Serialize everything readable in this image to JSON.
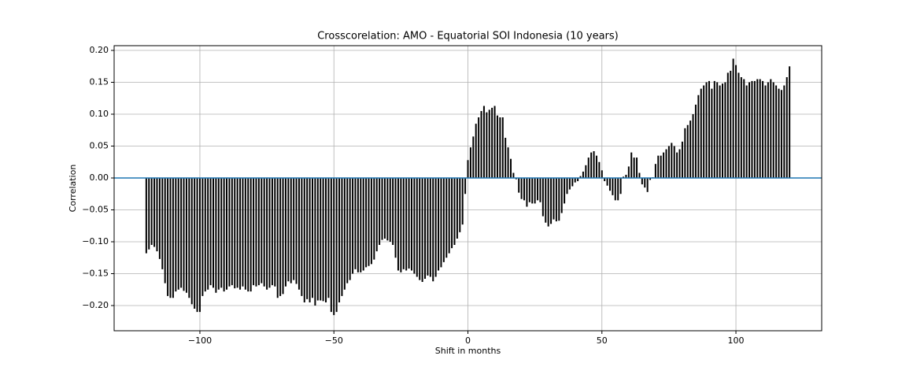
{
  "chart_data": {
    "type": "xcorr",
    "title": "Crosscorelation: AMO - Equatorial SOI Indonesia (10 years)",
    "x_label": "Shift in months",
    "y_label": "Correlation",
    "color": "#000000",
    "grid": true,
    "xlim": [
      -132,
      132
    ],
    "ylim": [
      -0.2395,
      0.2074
    ],
    "xticks": [
      {
        "value": -100,
        "label": "−100"
      },
      {
        "value": -50,
        "label": "−50"
      },
      0,
      50,
      100
    ],
    "yticks": [
      {
        "value": -0.2,
        "label": "−0.20"
      },
      {
        "value": -0.15,
        "label": "−0.15"
      },
      {
        "value": -0.1,
        "label": "−0.10"
      },
      {
        "value": -0.05,
        "label": "−0.05"
      },
      {
        "value": 0,
        "label": "0.00"
      },
      {
        "value": 0.05,
        "label": "0.05"
      },
      {
        "value": 0.1,
        "label": "0.10"
      },
      {
        "value": 0.15,
        "label": "0.15"
      },
      {
        "value": 0.2,
        "label": "0.20"
      }
    ],
    "x": [
      -120,
      -119,
      -118,
      -117,
      -116,
      -115,
      -114,
      -113,
      -112,
      -111,
      -110,
      -109,
      -108,
      -107,
      -106,
      -105,
      -104,
      -103,
      -102,
      -101,
      -100,
      -99,
      -98,
      -97,
      -96,
      -95,
      -94,
      -93,
      -92,
      -91,
      -90,
      -89,
      -88,
      -87,
      -86,
      -85,
      -84,
      -83,
      -82,
      -81,
      -80,
      -79,
      -78,
      -77,
      -76,
      -75,
      -74,
      -73,
      -72,
      -71,
      -70,
      -69,
      -68,
      -67,
      -66,
      -65,
      -64,
      -63,
      -62,
      -61,
      -60,
      -59,
      -58,
      -57,
      -56,
      -55,
      -54,
      -53,
      -52,
      -51,
      -50,
      -49,
      -48,
      -47,
      -46,
      -45,
      -44,
      -43,
      -42,
      -41,
      -40,
      -39,
      -38,
      -37,
      -36,
      -35,
      -34,
      -33,
      -32,
      -31,
      -30,
      -29,
      -28,
      -27,
      -26,
      -25,
      -24,
      -23,
      -22,
      -21,
      -20,
      -19,
      -18,
      -17,
      -16,
      -15,
      -14,
      -13,
      -12,
      -11,
      -10,
      -9,
      -8,
      -7,
      -6,
      -5,
      -4,
      -3,
      -2,
      -1,
      0,
      1,
      2,
      3,
      4,
      5,
      6,
      7,
      8,
      9,
      10,
      11,
      12,
      13,
      14,
      15,
      16,
      17,
      18,
      19,
      20,
      21,
      22,
      23,
      24,
      25,
      26,
      27,
      28,
      29,
      30,
      31,
      32,
      33,
      34,
      35,
      36,
      37,
      38,
      39,
      40,
      41,
      42,
      43,
      44,
      45,
      46,
      47,
      48,
      49,
      50,
      51,
      52,
      53,
      54,
      55,
      56,
      57,
      58,
      59,
      60,
      61,
      62,
      63,
      64,
      65,
      66,
      67,
      68,
      69,
      70,
      71,
      72,
      73,
      74,
      75,
      76,
      77,
      78,
      79,
      80,
      81,
      82,
      83,
      84,
      85,
      86,
      87,
      88,
      89,
      90,
      91,
      92,
      93,
      94,
      95,
      96,
      97,
      98,
      99,
      100,
      101,
      102,
      103,
      104,
      105,
      106,
      107,
      108,
      109,
      110,
      111,
      112,
      113,
      114,
      115,
      116,
      117,
      118,
      119,
      120
    ],
    "values": [
      -0.118,
      -0.112,
      -0.105,
      -0.108,
      -0.115,
      -0.127,
      -0.143,
      -0.165,
      -0.185,
      -0.188,
      -0.188,
      -0.178,
      -0.175,
      -0.172,
      -0.177,
      -0.18,
      -0.188,
      -0.198,
      -0.205,
      -0.21,
      -0.21,
      -0.185,
      -0.178,
      -0.175,
      -0.168,
      -0.172,
      -0.18,
      -0.175,
      -0.172,
      -0.178,
      -0.175,
      -0.17,
      -0.168,
      -0.173,
      -0.172,
      -0.175,
      -0.17,
      -0.175,
      -0.178,
      -0.178,
      -0.168,
      -0.17,
      -0.168,
      -0.165,
      -0.17,
      -0.175,
      -0.172,
      -0.168,
      -0.17,
      -0.188,
      -0.185,
      -0.182,
      -0.17,
      -0.162,
      -0.165,
      -0.16,
      -0.166,
      -0.175,
      -0.185,
      -0.195,
      -0.19,
      -0.195,
      -0.188,
      -0.2,
      -0.192,
      -0.192,
      -0.193,
      -0.195,
      -0.188,
      -0.21,
      -0.215,
      -0.21,
      -0.195,
      -0.185,
      -0.175,
      -0.165,
      -0.16,
      -0.15,
      -0.143,
      -0.148,
      -0.148,
      -0.145,
      -0.14,
      -0.138,
      -0.135,
      -0.128,
      -0.115,
      -0.105,
      -0.097,
      -0.095,
      -0.098,
      -0.1,
      -0.105,
      -0.125,
      -0.145,
      -0.148,
      -0.143,
      -0.145,
      -0.142,
      -0.145,
      -0.15,
      -0.155,
      -0.16,
      -0.163,
      -0.158,
      -0.153,
      -0.155,
      -0.162,
      -0.155,
      -0.145,
      -0.14,
      -0.132,
      -0.125,
      -0.118,
      -0.11,
      -0.105,
      -0.095,
      -0.085,
      -0.073,
      -0.025,
      0.028,
      0.048,
      0.065,
      0.085,
      0.095,
      0.105,
      0.113,
      0.103,
      0.107,
      0.11,
      0.113,
      0.098,
      0.095,
      0.095,
      0.063,
      0.048,
      0.03,
      0.008,
      -0.002,
      -0.023,
      -0.033,
      -0.035,
      -0.045,
      -0.038,
      -0.04,
      -0.04,
      -0.035,
      -0.038,
      -0.06,
      -0.07,
      -0.076,
      -0.072,
      -0.065,
      -0.068,
      -0.067,
      -0.055,
      -0.04,
      -0.025,
      -0.018,
      -0.013,
      -0.007,
      -0.005,
      0.003,
      0.01,
      0.02,
      0.032,
      0.04,
      0.042,
      0.035,
      0.025,
      0.012,
      -0.005,
      -0.012,
      -0.02,
      -0.027,
      -0.035,
      -0.035,
      -0.025,
      0.002,
      0.005,
      0.018,
      0.04,
      0.032,
      0.032,
      0.008,
      -0.01,
      -0.015,
      -0.022,
      -0.003,
      0.001,
      0.022,
      0.035,
      0.035,
      0.04,
      0.045,
      0.05,
      0.055,
      0.05,
      0.04,
      0.045,
      0.057,
      0.078,
      0.083,
      0.09,
      0.1,
      0.115,
      0.13,
      0.14,
      0.145,
      0.15,
      0.152,
      0.14,
      0.152,
      0.15,
      0.145,
      0.148,
      0.15,
      0.165,
      0.168,
      0.187,
      0.177,
      0.165,
      0.158,
      0.155,
      0.145,
      0.15,
      0.152,
      0.152,
      0.155,
      0.155,
      0.152,
      0.145,
      0.15,
      0.155,
      0.15,
      0.145,
      0.14,
      0.138,
      0.145,
      0.158,
      0.175
    ]
  }
}
